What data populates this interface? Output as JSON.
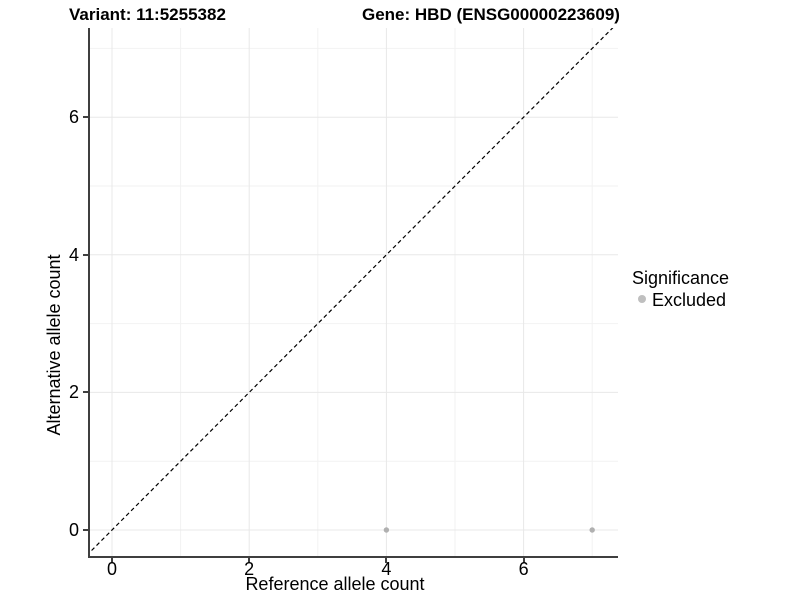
{
  "legend": {
    "title": "Significance",
    "items": [
      {
        "label": "Excluded",
        "color": "#bfbfbf",
        "marker": "circle-icon"
      }
    ]
  },
  "colors": {
    "background": "#ffffff",
    "axis_line": "#3f3f3f",
    "grid_major": "#e8e8e8",
    "grid_minor": "#f2f2f2",
    "point": "#b0b0b0",
    "reference_line": "#000000",
    "text": "#000000"
  },
  "chart_data": {
    "type": "scatter",
    "title_left": "Variant: 11:5255382",
    "title_right": "Gene: HBD (ENSG00000223609)",
    "xlabel": "Reference allele count",
    "ylabel": "Alternative allele count",
    "xlim": [
      -0.37,
      7.4
    ],
    "ylim": [
      -0.37,
      7.4
    ],
    "x_ticks": [
      0,
      2,
      4,
      6
    ],
    "y_ticks": [
      0,
      2,
      4,
      6
    ],
    "x_minor_gridlines": [
      1,
      3,
      5,
      7
    ],
    "y_minor_gridlines": [
      1,
      3,
      5,
      7
    ],
    "grid": true,
    "legend_position": "right",
    "series": [
      {
        "name": "Excluded",
        "color": "#b0b0b0",
        "points": [
          [
            4,
            0
          ],
          [
            7,
            0
          ]
        ]
      }
    ],
    "reference_line": {
      "type": "identity",
      "equation": "y = x",
      "style": "dashed",
      "from": [
        -0.37,
        -0.37
      ],
      "to": [
        7.45,
        7.45
      ]
    }
  }
}
